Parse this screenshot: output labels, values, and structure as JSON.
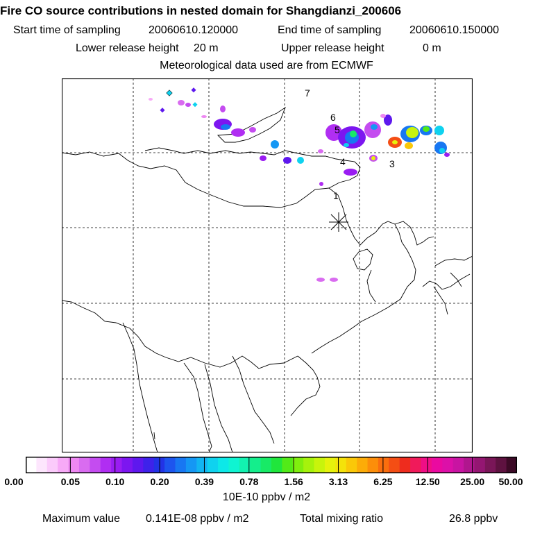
{
  "header": {
    "title": "Fire CO source contributions in nested domain for Shangdianzi_200606",
    "start_label": "Start time of sampling",
    "start_value": "20060610.120000",
    "end_label": "End time of sampling",
    "end_value": "20060610.150000",
    "lower_label": "Lower release height",
    "lower_value": "20 m",
    "upper_label": "Upper release height",
    "upper_value": "0 m",
    "met_line": "Meteorological data used are from ECMWF"
  },
  "map": {
    "station_marker": "receptor-star",
    "trajectory_labels": [
      "1",
      "3",
      "4",
      "5",
      "6",
      "7"
    ]
  },
  "colorbar": {
    "ticks": [
      "0.00",
      "0.05",
      "0.10",
      "0.20",
      "0.39",
      "0.78",
      "1.56",
      "3.13",
      "6.25",
      "12.50",
      "25.00",
      "50.00"
    ],
    "colors": [
      "#ffffff",
      "#fde6fd",
      "#fbcbfb",
      "#f7aaf7",
      "#ee88f2",
      "#d96cf0",
      "#c44cf0",
      "#b02ef2",
      "#9a1df2",
      "#7c16f0",
      "#5e18ee",
      "#3e22ea",
      "#2233e6",
      "#1d55ee",
      "#1877f2",
      "#1597f4",
      "#12b5f2",
      "#0fd2ef",
      "#0de8e8",
      "#0ff4d2",
      "#12f2b0",
      "#14ee8c",
      "#18ea66",
      "#20e63c",
      "#52ea18",
      "#80ee0e",
      "#a6f20c",
      "#c8f40c",
      "#e6f20c",
      "#f4e20a",
      "#fac808",
      "#fcac08",
      "#fc8e0a",
      "#fa6e0e",
      "#f44e14",
      "#ee2c1e",
      "#f01a5a",
      "#f00e86",
      "#ea0aa0",
      "#dc10a8",
      "#c814a2",
      "#b0168e",
      "#941672",
      "#7a1658",
      "#5e1240",
      "#3c0a26"
    ],
    "unit": "10E-10 ppbv / m2"
  },
  "footer": {
    "max_label": "Maximum value",
    "max_value": "0.141E-08 ppbv / m2",
    "total_label": "Total mixing ratio",
    "total_value": "26.8 ppbv"
  }
}
